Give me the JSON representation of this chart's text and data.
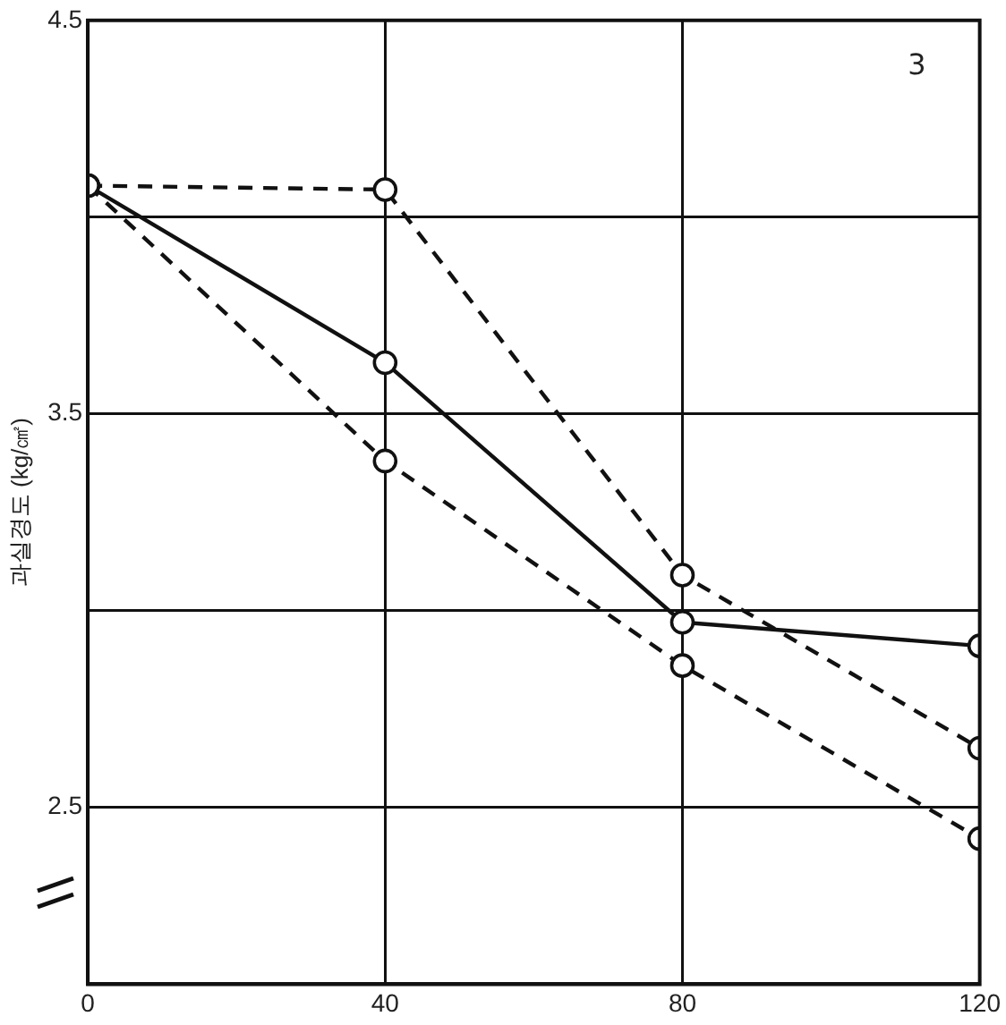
{
  "chart_data": {
    "type": "line",
    "ylabel": "과실경도 (kg/㎠)",
    "annotations": [
      "3"
    ],
    "x": [
      0,
      40,
      80,
      120
    ],
    "series": [
      {
        "color": "#111111",
        "values": [
          4.08,
          3.63,
          2.97,
          2.91
        ],
        "line_style": "solid"
      },
      {
        "color": "#111111",
        "values": [
          4.08,
          4.07,
          3.09,
          2.65
        ],
        "line_style": "dashed"
      },
      {
        "color": "#111111",
        "values": [
          4.08,
          3.38,
          2.86,
          2.42
        ],
        "line_style": "dashed"
      }
    ],
    "xlim": [
      0,
      120
    ],
    "xticks": [
      0,
      40,
      80,
      120
    ],
    "ylim": [
      2.05,
      4.5
    ],
    "yticks": [
      {
        "value": 2.5,
        "label": "2.5"
      },
      {
        "value": 3,
        "label": null
      },
      {
        "value": 3.5,
        "label": "3.5"
      },
      {
        "value": 4,
        "label": null
      },
      {
        "value": 4.5,
        "label": "4.5"
      }
    ],
    "grid": true,
    "legend": false,
    "marker": "circle"
  }
}
